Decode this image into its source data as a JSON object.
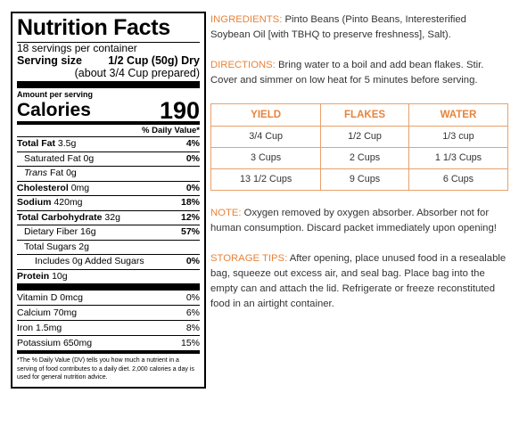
{
  "nutrition": {
    "title": "Nutrition Facts",
    "servings": "18 servings per container",
    "serving_size_label": "Serving size",
    "serving_size_value": "1/2 Cup (50g) Dry",
    "serving_size_sub": "(about 3/4 Cup prepared)",
    "amount_label": "Amount per serving",
    "calories_label": "Calories",
    "calories_value": "190",
    "dv_header": "% Daily Value*",
    "rows": [
      {
        "name": "Total Fat",
        "amount": "3.5g",
        "pct": "4%"
      },
      {
        "name": "Saturated Fat",
        "amount": "0g",
        "pct": "0%"
      },
      {
        "name_italic": "Trans",
        "name": "Fat",
        "amount": "0g",
        "pct": ""
      },
      {
        "name": "Cholesterol",
        "amount": "0mg",
        "pct": "0%"
      },
      {
        "name": "Sodium",
        "amount": "420mg",
        "pct": "18%"
      },
      {
        "name": "Total Carbohydrate",
        "amount": "32g",
        "pct": "12%"
      },
      {
        "name": "Dietary Fiber",
        "amount": "16g",
        "pct": "57%"
      },
      {
        "name": "Total Sugars",
        "amount": "2g",
        "pct": ""
      },
      {
        "name": "Includes 0g Added Sugars",
        "amount": "",
        "pct": "0%"
      },
      {
        "name": "Protein",
        "amount": "10g",
        "pct": ""
      }
    ],
    "vitamins": [
      {
        "name": "Vitamin D",
        "amount": "0mcg",
        "pct": "0%"
      },
      {
        "name": "Calcium",
        "amount": "70mg",
        "pct": "6%"
      },
      {
        "name": "Iron",
        "amount": "1.5mg",
        "pct": "8%"
      },
      {
        "name": "Potassium",
        "amount": "650mg",
        "pct": "15%"
      }
    ],
    "footnote": "*The % Daily Value (DV) tells you how much a nutrient in a serving of food contributes to a daily diet. 2,000 calories a day is used for general nutrition advice."
  },
  "info": {
    "ingredients_label": "INGREDIENTS:",
    "ingredients_text": "Pinto Beans (Pinto Beans, Interesterified Soybean Oil [with TBHQ to preserve freshness], Salt).",
    "directions_label": "DIRECTIONS:",
    "directions_text": "Bring water to a boil and add bean flakes. Stir. Cover and simmer on low heat for 5 minutes before serving.",
    "table": {
      "headers": [
        "YIELD",
        "FLAKES",
        "WATER"
      ],
      "rows": [
        [
          "3/4 Cup",
          "1/2 Cup",
          "1/3 cup"
        ],
        [
          "3 Cups",
          "2 Cups",
          "1 1/3 Cups"
        ],
        [
          "13 1/2 Cups",
          "9 Cups",
          "6 Cups"
        ]
      ]
    },
    "note_label": "NOTE:",
    "note_text": "Oxygen removed by oxygen absorber. Absorber not for human consumption. Discard packet immediately upon opening!",
    "storage_label": "STORAGE TIPS:",
    "storage_text": "After opening, place unused food in a resealable bag, squeeze out excess air, and seal bag. Place bag into the empty can and attach the lid. Refrigerate or freeze reconstituted food in an airtight container."
  },
  "colors": {
    "accent": "#e8833a",
    "table_border": "#e8a06a",
    "text": "#333333"
  }
}
